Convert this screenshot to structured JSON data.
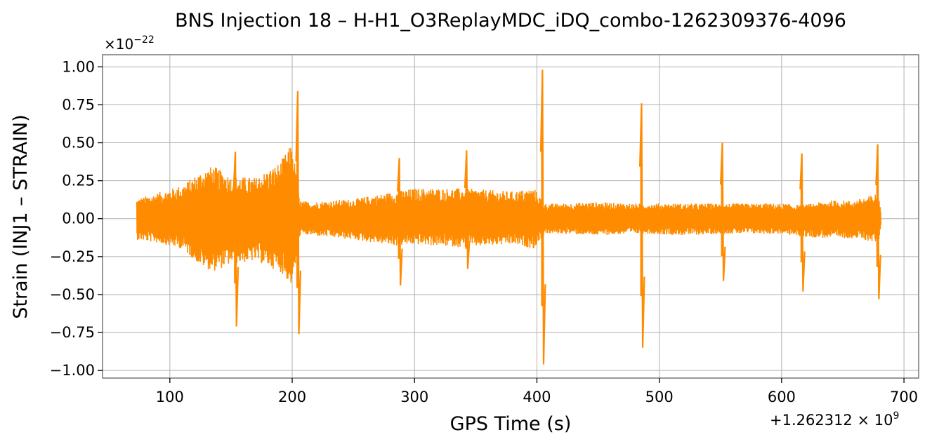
{
  "chart_data": {
    "type": "line",
    "title": "BNS Injection 18 – H-H1_O3ReplayMDC_iDQ_combo-1262309376-4096",
    "xlabel": "GPS Time (s)",
    "ylabel": "Strain (INJ1 – STRAIN)",
    "x_offset_label": "+1.262312 × 10",
    "x_offset_exp": "9",
    "y_scale_label": "×10",
    "y_scale_exp": "−22",
    "xlim": [
      45,
      712
    ],
    "ylim": [
      -1.05,
      1.08
    ],
    "xticks": [
      100,
      200,
      300,
      400,
      500,
      600,
      700
    ],
    "xtick_labels": [
      "100",
      "200",
      "300",
      "400",
      "500",
      "600",
      "700"
    ],
    "yticks": [
      -1.0,
      -0.75,
      -0.5,
      -0.25,
      0.0,
      0.25,
      0.5,
      0.75,
      1.0
    ],
    "ytick_labels": [
      "−1.00",
      "−0.75",
      "−0.50",
      "−0.25",
      "0.00",
      "0.25",
      "0.50",
      "0.75",
      "1.00"
    ],
    "grid": true,
    "series": [
      {
        "color": "#ff8c00",
        "envelope": {
          "x": [
            73,
            90,
            110,
            125,
            135,
            150,
            170,
            190,
            200,
            206,
            215,
            250,
            285,
            300,
            340,
            360,
            380,
            398,
            406,
            420,
            450,
            480,
            490,
            520,
            551,
            560,
            600,
            617,
            640,
            660,
            679,
            681
          ],
          "upper": [
            0.13,
            0.17,
            0.22,
            0.31,
            0.35,
            0.28,
            0.27,
            0.37,
            0.5,
            0.12,
            0.11,
            0.13,
            0.18,
            0.2,
            0.2,
            0.19,
            0.18,
            0.2,
            0.1,
            0.1,
            0.11,
            0.1,
            0.1,
            0.1,
            0.1,
            0.1,
            0.1,
            0.09,
            0.12,
            0.12,
            0.17,
            0.05
          ],
          "lower": [
            -0.14,
            -0.16,
            -0.2,
            -0.31,
            -0.35,
            -0.3,
            -0.28,
            -0.35,
            -0.45,
            -0.11,
            -0.11,
            -0.14,
            -0.18,
            -0.17,
            -0.19,
            -0.18,
            -0.17,
            -0.2,
            -0.1,
            -0.1,
            -0.11,
            -0.1,
            -0.1,
            -0.11,
            -0.1,
            -0.1,
            -0.1,
            -0.12,
            -0.13,
            -0.13,
            -0.16,
            -0.05
          ]
        },
        "spikes": [
          {
            "x": 154,
            "max": 0.44,
            "min": -0.71
          },
          {
            "x": 205,
            "max": 0.84,
            "min": -0.76
          },
          {
            "x": 288,
            "max": 0.4,
            "min": -0.44
          },
          {
            "x": 343,
            "max": 0.45,
            "min": -0.33
          },
          {
            "x": 405,
            "max": 0.98,
            "min": -0.96
          },
          {
            "x": 486,
            "max": 0.76,
            "min": -0.85
          },
          {
            "x": 552,
            "max": 0.5,
            "min": -0.41
          },
          {
            "x": 617,
            "max": 0.43,
            "min": -0.48
          },
          {
            "x": 679,
            "max": 0.49,
            "min": -0.53
          }
        ]
      }
    ]
  }
}
